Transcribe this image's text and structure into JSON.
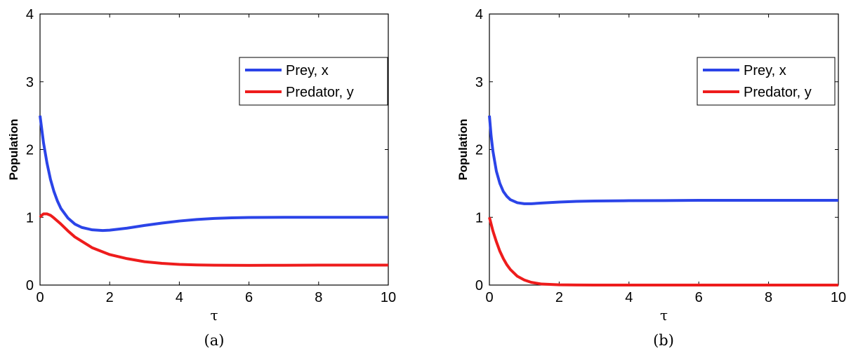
{
  "chart_data": [
    {
      "type": "line",
      "caption": "(a)",
      "xlabel": "τ",
      "ylabel": "Population",
      "xlim": [
        0,
        10
      ],
      "ylim": [
        0,
        4
      ],
      "xticks": [
        "0",
        "2",
        "4",
        "6",
        "8",
        "10"
      ],
      "yticks": [
        "0",
        "1",
        "2",
        "3",
        "4"
      ],
      "grid": false,
      "legend_position": "top-right",
      "series": [
        {
          "name": "Prey, x",
          "color": "#2b44e8",
          "x": [
            0,
            0.1,
            0.2,
            0.3,
            0.4,
            0.5,
            0.6,
            0.8,
            1.0,
            1.2,
            1.5,
            1.8,
            2.0,
            2.5,
            3.0,
            3.5,
            4.0,
            4.5,
            5.0,
            5.5,
            6.0,
            7.0,
            8.0,
            9.0,
            10.0
          ],
          "y": [
            2.5,
            2.1,
            1.8,
            1.56,
            1.38,
            1.24,
            1.13,
            0.99,
            0.9,
            0.85,
            0.815,
            0.805,
            0.81,
            0.84,
            0.88,
            0.915,
            0.945,
            0.968,
            0.983,
            0.992,
            0.997,
            1.0,
            1.0,
            1.0,
            1.0
          ]
        },
        {
          "name": "Predator, y",
          "color": "#ee1c1c",
          "x": [
            0,
            0.05,
            0.1,
            0.2,
            0.3,
            0.4,
            0.6,
            0.8,
            1.0,
            1.5,
            2.0,
            2.5,
            3.0,
            3.5,
            4.0,
            4.5,
            5.0,
            6.0,
            7.0,
            8.0,
            9.0,
            10.0
          ],
          "y": [
            1.0,
            1.03,
            1.05,
            1.05,
            1.03,
            0.99,
            0.9,
            0.8,
            0.71,
            0.55,
            0.45,
            0.39,
            0.345,
            0.32,
            0.305,
            0.297,
            0.293,
            0.291,
            0.292,
            0.294,
            0.295,
            0.295
          ]
        }
      ]
    },
    {
      "type": "line",
      "caption": "(b)",
      "xlabel": "τ",
      "ylabel": "Population",
      "xlim": [
        0,
        10
      ],
      "ylim": [
        0,
        4
      ],
      "xticks": [
        "0",
        "2",
        "4",
        "6",
        "8",
        "10"
      ],
      "yticks": [
        "0",
        "1",
        "2",
        "3",
        "4"
      ],
      "grid": false,
      "legend_position": "top-right",
      "series": [
        {
          "name": "Prey, x",
          "color": "#2b44e8",
          "x": [
            0,
            0.05,
            0.1,
            0.2,
            0.3,
            0.4,
            0.5,
            0.6,
            0.8,
            1.0,
            1.2,
            1.5,
            2.0,
            2.5,
            3.0,
            4.0,
            5.0,
            6.0,
            8.0,
            10.0
          ],
          "y": [
            2.5,
            2.2,
            1.98,
            1.68,
            1.5,
            1.38,
            1.31,
            1.26,
            1.215,
            1.2,
            1.2,
            1.21,
            1.225,
            1.235,
            1.24,
            1.245,
            1.247,
            1.25,
            1.25,
            1.25
          ]
        },
        {
          "name": "Predator, y",
          "color": "#ee1c1c",
          "x": [
            0,
            0.1,
            0.2,
            0.3,
            0.4,
            0.5,
            0.6,
            0.8,
            1.0,
            1.2,
            1.5,
            2.0,
            2.5,
            3.0,
            4.0,
            6.0,
            8.0,
            10.0
          ],
          "y": [
            1.0,
            0.8,
            0.64,
            0.5,
            0.39,
            0.3,
            0.23,
            0.13,
            0.075,
            0.04,
            0.015,
            0.004,
            0.001,
            0.0,
            0.0,
            0.0,
            0.0,
            0.0
          ]
        }
      ]
    }
  ]
}
